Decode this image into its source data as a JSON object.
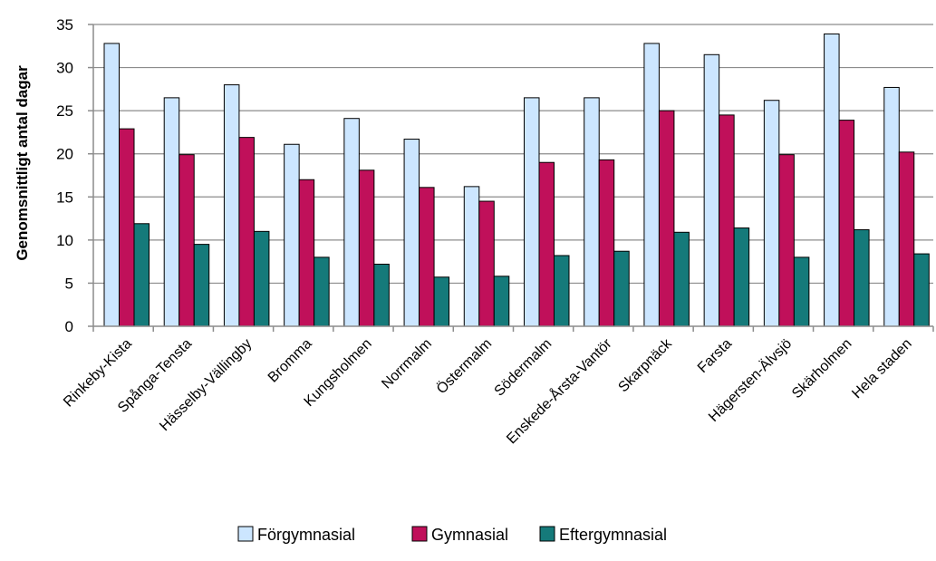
{
  "chart_data": {
    "type": "bar",
    "ylabel": "Genomsnittligt antal dagar",
    "ylim": [
      0,
      35
    ],
    "yticks": [
      0,
      5,
      10,
      15,
      20,
      25,
      30,
      35
    ],
    "grid": true,
    "legend_position": "bottom",
    "categories": [
      "Rinkeby-Kista",
      "Spånga-Tensta",
      "Hässelby-Vällingby",
      "Bromma",
      "Kungsholmen",
      "Norrmalm",
      "Östermalm",
      "Södermalm",
      "Enskede-Årsta-Vantör",
      "Skarpnäck",
      "Farsta",
      "Hägersten-Älvsjö",
      "Skärholmen",
      "Hela staden"
    ],
    "series": [
      {
        "name": "Förgymnasial",
        "color": "#cce6ff",
        "values": [
          32.8,
          26.5,
          28.0,
          21.1,
          24.1,
          21.7,
          16.2,
          26.5,
          26.5,
          32.8,
          31.5,
          26.2,
          33.9,
          27.7
        ]
      },
      {
        "name": "Gymnasial",
        "color": "#c0105a",
        "values": [
          22.9,
          19.9,
          21.9,
          17.0,
          18.1,
          16.1,
          14.5,
          19.0,
          19.3,
          25.0,
          24.5,
          19.9,
          23.9,
          20.2
        ]
      },
      {
        "name": "Eftergymnasial",
        "color": "#157a7a",
        "values": [
          11.9,
          9.5,
          11.0,
          8.0,
          7.2,
          5.7,
          5.8,
          8.2,
          8.7,
          10.9,
          11.4,
          8.0,
          11.2,
          8.4
        ]
      }
    ]
  }
}
